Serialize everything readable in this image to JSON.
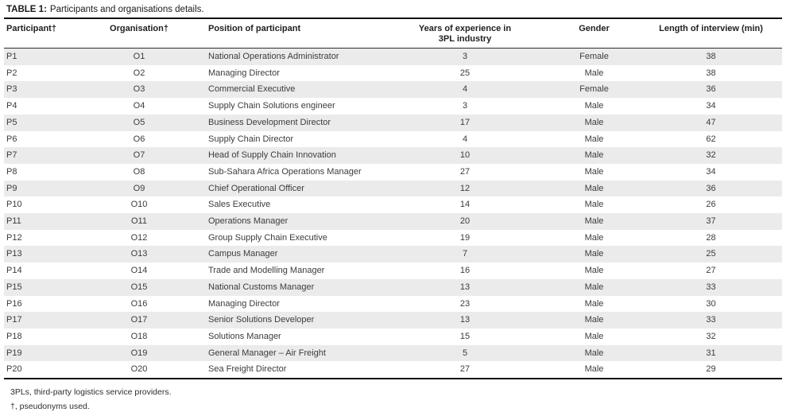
{
  "table": {
    "title_label": "TABLE 1:",
    "title_text": "Participants and organisations details.",
    "columns": [
      {
        "key": "participant",
        "label": "Participant†"
      },
      {
        "key": "organisation",
        "label": "Organisation†"
      },
      {
        "key": "position",
        "label": "Position of participant"
      },
      {
        "key": "experience_years",
        "label": "Years of experience in",
        "label2": "3PL industry"
      },
      {
        "key": "gender",
        "label": "Gender"
      },
      {
        "key": "interview_length_min",
        "label": "Length of interview (min)"
      }
    ],
    "rows": [
      [
        "P1",
        "O1",
        "National Operations Administrator",
        3,
        "Female",
        38
      ],
      [
        "P2",
        "O2",
        "Managing Director",
        25,
        "Male",
        38
      ],
      [
        "P3",
        "O3",
        "Commercial Executive",
        4,
        "Female",
        36
      ],
      [
        "P4",
        "O4",
        "Supply Chain Solutions engineer",
        3,
        "Male",
        34
      ],
      [
        "P5",
        "O5",
        "Business Development Director",
        17,
        "Male",
        47
      ],
      [
        "P6",
        "O6",
        "Supply Chain Director",
        4,
        "Male",
        62
      ],
      [
        "P7",
        "O7",
        "Head of Supply Chain Innovation",
        10,
        "Male",
        32
      ],
      [
        "P8",
        "O8",
        "Sub-Sahara Africa Operations Manager",
        27,
        "Male",
        34
      ],
      [
        "P9",
        "O9",
        "Chief Operational Officer",
        12,
        "Male",
        36
      ],
      [
        "P10",
        "O10",
        "Sales Executive",
        14,
        "Male",
        26
      ],
      [
        "P11",
        "O11",
        "Operations Manager",
        20,
        "Male",
        37
      ],
      [
        "P12",
        "O12",
        "Group Supply Chain Executive",
        19,
        "Male",
        28
      ],
      [
        "P13",
        "O13",
        "Campus Manager",
        7,
        "Male",
        25
      ],
      [
        "P14",
        "O14",
        "Trade and Modelling Manager",
        16,
        "Male",
        27
      ],
      [
        "P15",
        "O15",
        "National Customs Manager",
        13,
        "Male",
        33
      ],
      [
        "P16",
        "O16",
        "Managing Director",
        23,
        "Male",
        30
      ],
      [
        "P17",
        "O17",
        "Senior Solutions Developer",
        13,
        "Male",
        33
      ],
      [
        "P18",
        "O18",
        "Solutions Manager",
        15,
        "Male",
        32
      ],
      [
        "P19",
        "O19",
        "General Manager – Air Freight",
        5,
        "Male",
        31
      ],
      [
        "P20",
        "O20",
        "Sea Freight Director",
        27,
        "Male",
        29
      ]
    ],
    "footnotes": [
      "3PLs, third-party logistics service providers.",
      "†, pseudonyms used."
    ]
  },
  "colors": {
    "row_stripe": "#ebebeb",
    "rule_dark": "#111111",
    "rule_mid": "#2b2b2b",
    "text": "#3c3c3c"
  }
}
